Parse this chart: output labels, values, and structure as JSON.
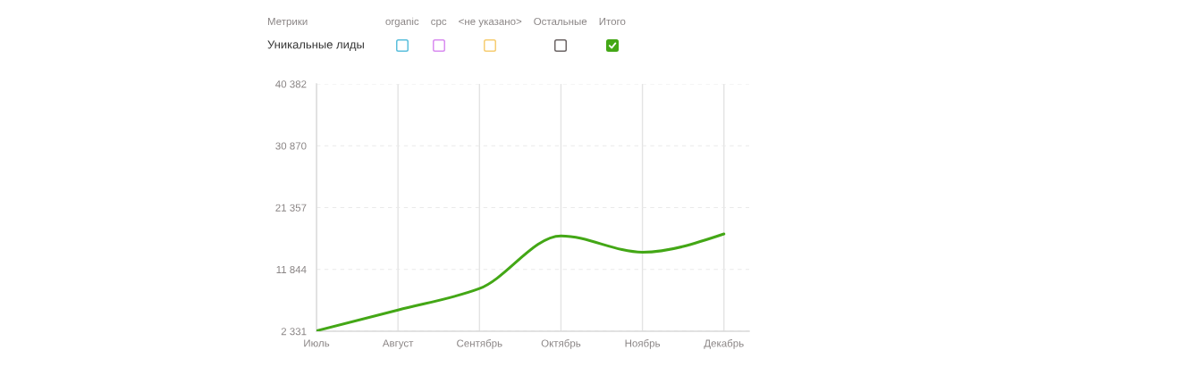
{
  "chart_data": {
    "type": "line",
    "legend_title": "Метрики",
    "annotations": [
      "Уникальные лиды"
    ],
    "categories": [
      "Июль",
      "Август",
      "Сентябрь",
      "Октябрь",
      "Ноябрь",
      "Декабрь"
    ],
    "series": [
      {
        "name": "organic",
        "values": [
          null,
          null,
          null,
          null,
          null,
          null
        ]
      },
      {
        "name": "cpc",
        "values": [
          null,
          null,
          null,
          null,
          null,
          null
        ]
      },
      {
        "name": "<не указано>",
        "values": [
          null,
          null,
          null,
          null,
          null,
          null
        ]
      },
      {
        "name": "Остальные",
        "values": [
          null,
          null,
          null,
          null,
          null,
          null
        ]
      },
      {
        "name": "Итого",
        "color": "#43a716",
        "values": [
          2400,
          5600,
          8900,
          17000,
          14500,
          17300
        ]
      }
    ],
    "ylim": [
      2331,
      40382
    ],
    "yticks": [
      {
        "value": 2331,
        "label": "2 331"
      },
      {
        "value": 11844,
        "label": "11 844"
      },
      {
        "value": 21357,
        "label": "21 357"
      },
      {
        "value": 30870,
        "label": "30 870"
      },
      {
        "value": 40382,
        "label": "40 382"
      }
    ],
    "grid": true,
    "legend": "top"
  }
}
